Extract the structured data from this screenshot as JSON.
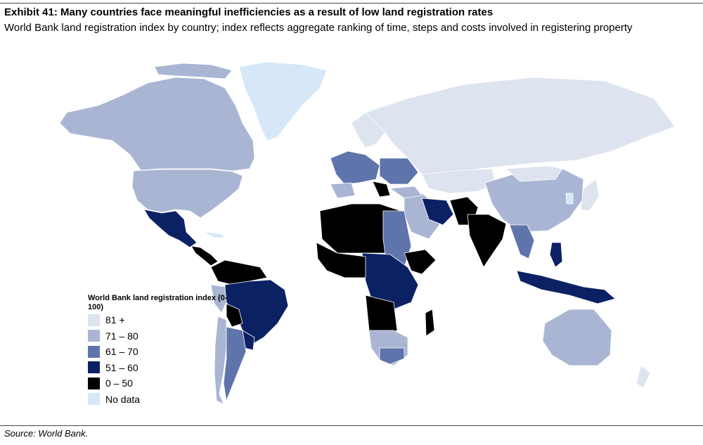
{
  "header": {
    "title": "Exhibit 41: Many countries face meaningful inefficiencies as a result of low land registration rates",
    "subtitle": "World Bank land registration index by country; index reflects aggregate ranking of time, steps and costs involved in registering property"
  },
  "legend": {
    "title": "World Bank land registration index (0-100)",
    "items": [
      {
        "label": "81 +",
        "color": "#dde3ef"
      },
      {
        "label": "71 – 80",
        "color": "#a9b5d3"
      },
      {
        "label": "61 – 70",
        "color": "#5e74ab"
      },
      {
        "label": "51 – 60",
        "color": "#0b2164"
      },
      {
        "label": "0 – 50",
        "color": "#000000"
      },
      {
        "label": "No data",
        "color": "#d6e8f7"
      }
    ]
  },
  "footer": {
    "source": "Source: World Bank."
  }
}
